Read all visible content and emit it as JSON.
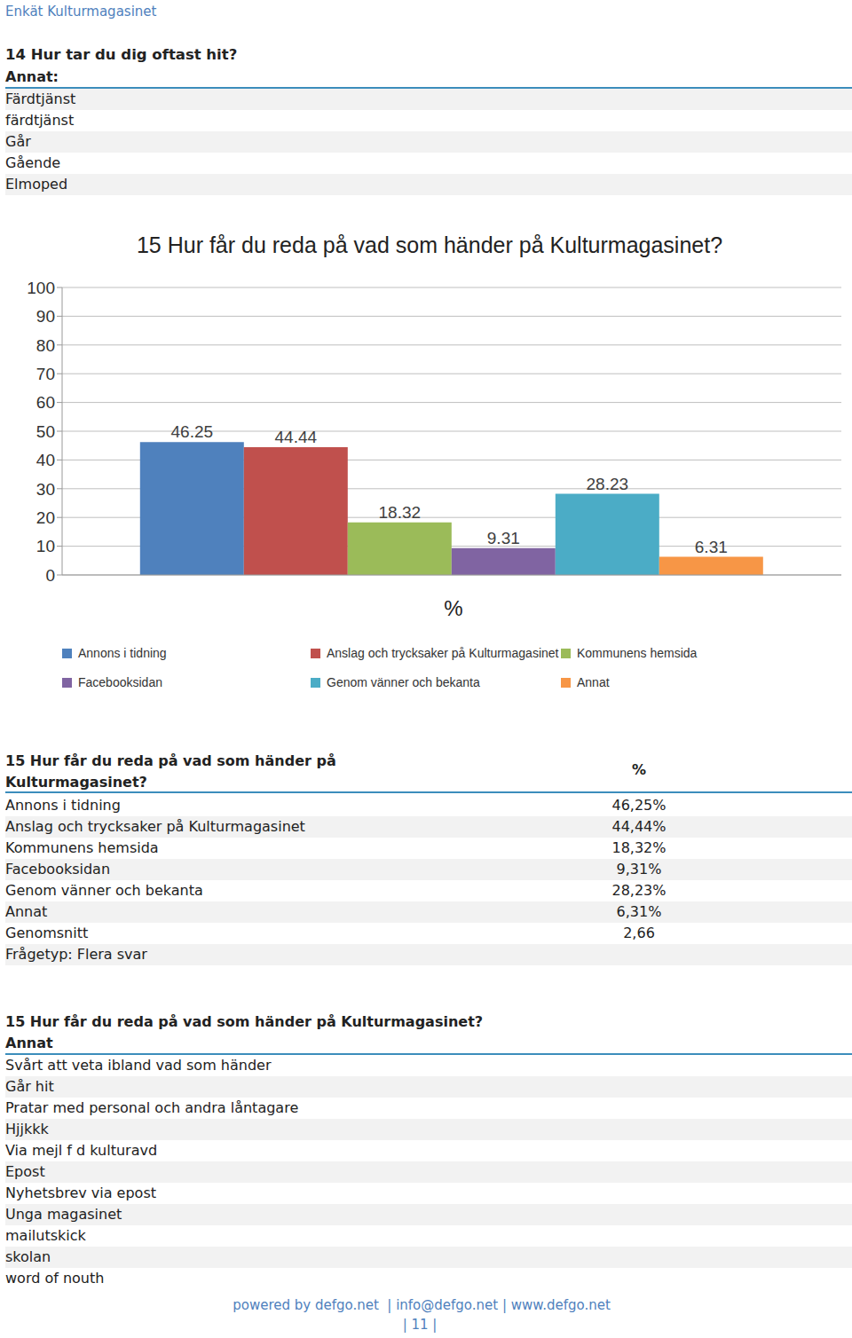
{
  "header": "Enkät Kulturmagasinet",
  "q14": {
    "title": "14 Hur tar du dig oftast hit?",
    "subtitle": "Annat:",
    "rows": [
      "Färdtjänst",
      "färdtjänst",
      "Går",
      "Gående",
      "Elmoped"
    ]
  },
  "chart_data": {
    "type": "bar",
    "title": "15 Hur får du reda på vad som händer på Kulturmagasinet?",
    "xlabel": "%",
    "categories": [
      null
    ],
    "series": [
      {
        "name": "Annons i tidning",
        "color": "#4f81bd",
        "values": [
          46.25
        ]
      },
      {
        "name": "Anslag och trycksaker på Kulturmagasinet",
        "color": "#c0504d",
        "values": [
          44.44
        ]
      },
      {
        "name": "Kommunens hemsida",
        "color": "#9bbb59",
        "values": [
          18.32
        ]
      },
      {
        "name": "Facebooksidan",
        "color": "#8064a2",
        "values": [
          9.31
        ]
      },
      {
        "name": "Genom vänner och bekanta",
        "color": "#4bacc6",
        "values": [
          28.23
        ]
      },
      {
        "name": "Annat",
        "color": "#f79646",
        "values": [
          6.31
        ]
      }
    ],
    "ylim": [
      0,
      100
    ],
    "yticks": [
      0,
      10,
      20,
      30,
      40,
      50,
      60,
      70,
      80,
      90,
      100
    ],
    "grid": true,
    "data_labels": true,
    "tick_labels": "y",
    "legend": "bottom"
  },
  "q15_table": {
    "title_lines": [
      "15 Hur får du reda på vad som händer på",
      "Kulturmagasinet?"
    ],
    "column": "%",
    "rows": [
      [
        "Annons i tidning",
        "46,25%"
      ],
      [
        "Anslag och trycksaker på Kulturmagasinet",
        "44,44%"
      ],
      [
        "Kommunens hemsida",
        "18,32%"
      ],
      [
        "Facebooksidan",
        "9,31%"
      ],
      [
        "Genom vänner och bekanta",
        "28,23%"
      ],
      [
        "Annat",
        "6,31%"
      ],
      [
        "Genomsnitt",
        "2,66"
      ]
    ],
    "note": "Frågetyp: Flera svar"
  },
  "q15_other": {
    "title": "15 Hur får du reda på vad som händer på Kulturmagasinet?",
    "subtitle": "Annat",
    "rows": [
      "Svårt att veta ibland vad som händer",
      "Går hit",
      "Pratar med personal och andra låntagare",
      "Hjjkkk",
      "Via mejl f d kulturavd",
      "Epost",
      "Nyhetsbrev via epost",
      "Unga magasinet",
      "mailutskick",
      "skolan",
      "word of nouth"
    ]
  },
  "footer": {
    "links": "powered by defgo.net  | info@defgo.net | www.defgo.net",
    "page": "| 11 |"
  }
}
